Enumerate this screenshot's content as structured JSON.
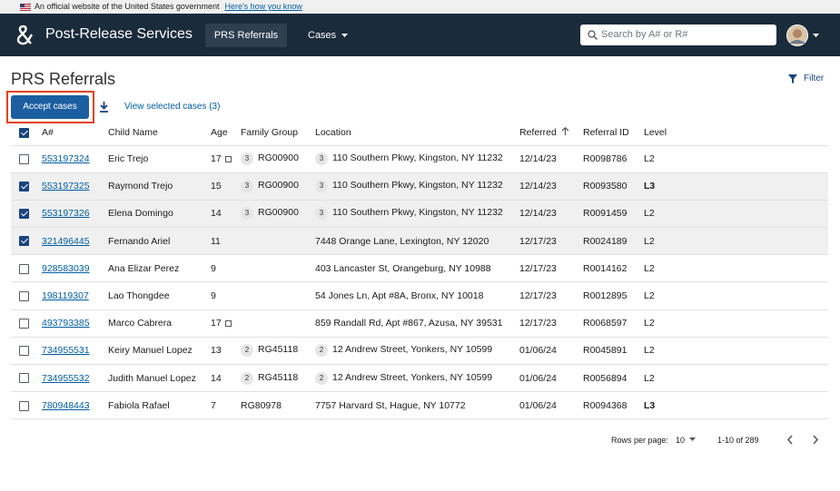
{
  "banner": {
    "text": "An official website of the United States government",
    "link": "Here's how you know"
  },
  "header": {
    "brand": "Post-Release Services",
    "nav": [
      "PRS Referrals",
      "Cases"
    ],
    "search_placeholder": "Search by A# or R#"
  },
  "page": {
    "title": "PRS Referrals",
    "filter": "Filter",
    "accept_button": "Accept cases",
    "view_selected": "View selected cases (3)"
  },
  "table": {
    "columns": [
      "A#",
      "Child Name",
      "Age",
      "Family Group",
      "Location",
      "Referred",
      "Referral ID",
      "Level"
    ],
    "rows": [
      {
        "selected": false,
        "a_number": "553197324",
        "name": "Eric Trejo",
        "age": 17,
        "age_flag": true,
        "family_count": 3,
        "family_group": "RG00900",
        "location_count": 3,
        "location": "110 Southern Pkwy, Kingston, NY 11232",
        "referred": "12/14/23",
        "referral_id": "R0098786",
        "level": "L2"
      },
      {
        "selected": true,
        "a_number": "553197325",
        "name": "Raymond Trejo",
        "age": 15,
        "family_count": 3,
        "family_group": "RG00900",
        "location_count": 3,
        "location": "110 Southern Pkwy, Kingston, NY 11232",
        "referred": "12/14/23",
        "referral_id": "R0093580",
        "level": "L3",
        "level_emphasis": true
      },
      {
        "selected": true,
        "a_number": "553197326",
        "name": "Elena Domingo",
        "age": 14,
        "family_count": 3,
        "family_group": "RG00900",
        "location_count": 3,
        "location": "110 Southern Pkwy, Kingston, NY 11232",
        "referred": "12/14/23",
        "referral_id": "R0091459",
        "level": "L2"
      },
      {
        "selected": true,
        "a_number": "321496445",
        "name": "Fernando Ariel",
        "age": 11,
        "location": "7448 Orange Lane, Lexington, NY 12020",
        "referred": "12/17/23",
        "referral_id": "R0024189",
        "level": "L2"
      },
      {
        "selected": false,
        "a_number": "928583039",
        "name": "Ana Elizar Perez",
        "age": 9,
        "location": "403 Lancaster St, Orangeburg, NY 10988",
        "referred": "12/17/23",
        "referral_id": "R0014162",
        "level": "L2"
      },
      {
        "selected": false,
        "a_number": "198119307",
        "name": "Lao Thongdee",
        "age": 9,
        "location": "54 Jones Ln, Apt #8A, Bronx, NY 10018",
        "referred": "12/17/23",
        "referral_id": "R0012895",
        "level": "L2"
      },
      {
        "selected": false,
        "a_number": "493793385",
        "name": "Marco Cabrera",
        "age": 17,
        "age_flag": true,
        "location": "859 Randall Rd, Apt #867, Azusa, NY 39531",
        "referred": "12/17/23",
        "referral_id": "R0068597",
        "level": "L2"
      },
      {
        "selected": false,
        "a_number": "734955531",
        "name": "Keiry Manuel Lopez",
        "age": 13,
        "family_count": 2,
        "family_group": "RG45118",
        "location_count": 2,
        "location": "12 Andrew Street, Yonkers, NY 10599",
        "referred": "01/06/24",
        "referral_id": "R0045891",
        "level": "L2"
      },
      {
        "selected": false,
        "a_number": "734955532",
        "name": "Judith Manuel Lopez",
        "age": 14,
        "family_count": 2,
        "family_group": "RG45118",
        "location_count": 2,
        "location": "12 Andrew Street, Yonkers, NY 10599",
        "referred": "01/06/24",
        "referral_id": "R0056894",
        "level": "L2"
      },
      {
        "selected": false,
        "a_number": "780948443",
        "name": "Fabiola Rafael",
        "age": 7,
        "family_group": "RG80978",
        "location": "7757 Harvard St, Hague, NY 10772",
        "referred": "01/06/24",
        "referral_id": "R0094368",
        "level": "L3",
        "level_emphasis": true
      }
    ]
  },
  "footer": {
    "rows_per_page_label": "Rows per page:",
    "rows_per_page": 10,
    "range": "1-10 of 289"
  }
}
